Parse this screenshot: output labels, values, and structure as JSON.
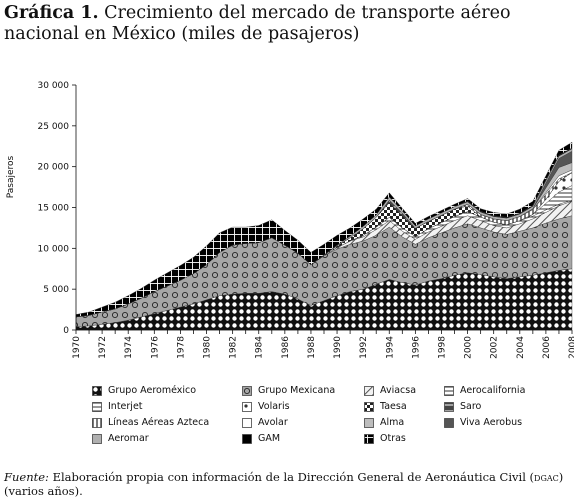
{
  "title": {
    "lead": "Gráfica 1.",
    "text": "Crecimiento del mercado de transporte aéreo nacional en México (miles de pasajeros)"
  },
  "chart_data": {
    "type": "area",
    "stacked": true,
    "ylabel": "Pasajeros",
    "ylim": [
      0,
      30000
    ],
    "yticks": [
      0,
      5000,
      10000,
      15000,
      20000,
      25000,
      30000
    ],
    "ytick_labels": [
      "0",
      "5 000",
      "10 000",
      "15 000",
      "20 000",
      "25 000",
      "30 000"
    ],
    "xtick_labels": [
      "1970",
      "1972",
      "1974",
      "1976",
      "1978",
      "1980",
      "1982",
      "1984",
      "1986",
      "1988",
      "1990",
      "1992",
      "1994",
      "1996",
      "1998",
      "2000",
      "2002",
      "2004",
      "2006",
      "2008"
    ],
    "x": [
      1970,
      1971,
      1972,
      1973,
      1974,
      1975,
      1976,
      1977,
      1978,
      1979,
      1980,
      1981,
      1982,
      1983,
      1984,
      1985,
      1986,
      1987,
      1988,
      1989,
      1990,
      1991,
      1992,
      1993,
      1994,
      1995,
      1996,
      1997,
      1998,
      1999,
      2000,
      2001,
      2002,
      2003,
      2004,
      2005,
      2006,
      2007,
      2008
    ],
    "series": [
      {
        "name": "Grupo Aeroméxico",
        "color": "#ffffff",
        "pattern": "dots-on-black",
        "values": [
          400,
          500,
          700,
          900,
          1200,
          1600,
          2000,
          2400,
          2800,
          3200,
          3700,
          4200,
          4400,
          4500,
          4500,
          4700,
          4400,
          3800,
          3000,
          3600,
          4200,
          4700,
          5000,
          5600,
          6200,
          5800,
          5500,
          6000,
          6300,
          6700,
          7000,
          6800,
          6500,
          6300,
          6500,
          6700,
          7000,
          7300,
          7500
        ]
      },
      {
        "name": "Grupo Mexicana",
        "color": "#a6a6a6",
        "pattern": "circles",
        "values": [
          1200,
          1300,
          1500,
          1700,
          2000,
          2300,
          2700,
          3000,
          3300,
          3700,
          4300,
          5300,
          6000,
          6100,
          6200,
          6600,
          6000,
          5600,
          5000,
          5500,
          5700,
          5800,
          5900,
          6000,
          6400,
          5600,
          5000,
          5300,
          5600,
          5800,
          6000,
          5700,
          5500,
          5400,
          5600,
          5800,
          6100,
          6300,
          6500
        ]
      },
      {
        "name": "Aviacsa",
        "color": "#d0d0d0",
        "pattern": "diagonal",
        "values": [
          0,
          0,
          0,
          0,
          0,
          0,
          0,
          0,
          0,
          0,
          0,
          0,
          0,
          0,
          0,
          0,
          0,
          0,
          0,
          0,
          200,
          400,
          500,
          700,
          800,
          700,
          600,
          700,
          800,
          900,
          1000,
          900,
          800,
          800,
          900,
          1100,
          1300,
          1600,
          1800
        ]
      },
      {
        "name": "Aerocalifornia",
        "color": "#eeeeee",
        "pattern": "hlines",
        "values": [
          0,
          0,
          0,
          0,
          0,
          0,
          0,
          0,
          0,
          0,
          0,
          0,
          0,
          0,
          0,
          0,
          0,
          0,
          0,
          0,
          0,
          0,
          200,
          300,
          400,
          400,
          350,
          400,
          450,
          500,
          500,
          450,
          400,
          400,
          400,
          350,
          300,
          200,
          100
        ]
      },
      {
        "name": "Interjet",
        "color": "#ffffff",
        "pattern": "hlines",
        "values": [
          0,
          0,
          0,
          0,
          0,
          0,
          0,
          0,
          0,
          0,
          0,
          0,
          0,
          0,
          0,
          0,
          0,
          0,
          0,
          0,
          0,
          0,
          0,
          0,
          0,
          0,
          0,
          0,
          0,
          0,
          0,
          0,
          0,
          0,
          0,
          200,
          800,
          1500,
          1800
        ]
      },
      {
        "name": "Volaris",
        "color": "#ffffff",
        "pattern": "stars",
        "values": [
          0,
          0,
          0,
          0,
          0,
          0,
          0,
          0,
          0,
          0,
          0,
          0,
          0,
          0,
          0,
          0,
          0,
          0,
          0,
          0,
          0,
          0,
          0,
          0,
          0,
          0,
          0,
          0,
          0,
          0,
          0,
          0,
          0,
          0,
          0,
          0,
          500,
          1300,
          1600
        ]
      },
      {
        "name": "Taesa",
        "color": "#333333",
        "pattern": "checker",
        "values": [
          0,
          0,
          0,
          0,
          0,
          0,
          0,
          0,
          0,
          0,
          0,
          0,
          0,
          0,
          0,
          0,
          0,
          0,
          0,
          100,
          200,
          400,
          800,
          1200,
          1800,
          1500,
          1000,
          900,
          900,
          900,
          700,
          0,
          0,
          0,
          0,
          0,
          0,
          0,
          0
        ]
      },
      {
        "name": "Saro",
        "color": "#555555",
        "pattern": "bars",
        "values": [
          0,
          0,
          0,
          0,
          0,
          0,
          0,
          0,
          0,
          0,
          0,
          0,
          0,
          0,
          0,
          0,
          0,
          0,
          0,
          0,
          0,
          0,
          0,
          0,
          300,
          300,
          0,
          0,
          0,
          0,
          0,
          0,
          0,
          0,
          0,
          0,
          0,
          0,
          0
        ]
      },
      {
        "name": "Líneas Aéreas Azteca",
        "color": "#dddddd",
        "pattern": "vlines",
        "values": [
          0,
          0,
          0,
          0,
          0,
          0,
          0,
          0,
          0,
          0,
          0,
          0,
          0,
          0,
          0,
          0,
          0,
          0,
          0,
          0,
          0,
          0,
          0,
          0,
          0,
          0,
          0,
          0,
          0,
          0,
          200,
          300,
          400,
          500,
          500,
          600,
          600,
          300,
          0
        ]
      },
      {
        "name": "Avolar",
        "color": "#ffffff",
        "pattern": "none",
        "values": [
          0,
          0,
          0,
          0,
          0,
          0,
          0,
          0,
          0,
          0,
          0,
          0,
          0,
          0,
          0,
          0,
          0,
          0,
          0,
          0,
          0,
          0,
          0,
          0,
          0,
          0,
          0,
          0,
          0,
          0,
          0,
          0,
          0,
          0,
          0,
          0,
          200,
          400,
          300
        ]
      },
      {
        "name": "Alma",
        "color": "#bdbdbd",
        "pattern": "none",
        "values": [
          0,
          0,
          0,
          0,
          0,
          0,
          0,
          0,
          0,
          0,
          0,
          0,
          0,
          0,
          0,
          0,
          0,
          0,
          0,
          0,
          0,
          0,
          0,
          0,
          0,
          0,
          0,
          0,
          0,
          0,
          0,
          0,
          0,
          0,
          0,
          100,
          600,
          1000,
          900
        ]
      },
      {
        "name": "Viva Aerobus",
        "color": "#555555",
        "pattern": "none",
        "values": [
          0,
          0,
          0,
          0,
          0,
          0,
          0,
          0,
          0,
          0,
          0,
          0,
          0,
          0,
          0,
          0,
          0,
          0,
          0,
          0,
          0,
          0,
          0,
          0,
          0,
          0,
          0,
          0,
          0,
          0,
          0,
          0,
          0,
          0,
          0,
          0,
          600,
          1100,
          1400
        ]
      },
      {
        "name": "Aeromar",
        "color": "#b0b0b0",
        "pattern": "none",
        "values": [
          0,
          0,
          0,
          0,
          0,
          0,
          0,
          0,
          0,
          0,
          0,
          0,
          0,
          0,
          0,
          0,
          0,
          0,
          0,
          0,
          100,
          200,
          300,
          300,
          400,
          300,
          300,
          300,
          300,
          300,
          300,
          300,
          300,
          300,
          300,
          300,
          300,
          300,
          300
        ]
      },
      {
        "name": "GAM",
        "color": "#000000",
        "pattern": "none",
        "values": [
          0,
          0,
          0,
          0,
          0,
          0,
          0,
          0,
          0,
          0,
          0,
          0,
          0,
          0,
          0,
          0,
          0,
          0,
          0,
          0,
          0,
          0,
          0,
          0,
          0,
          0,
          0,
          0,
          0,
          0,
          100,
          100,
          100,
          100,
          100,
          100,
          100,
          100,
          100
        ]
      },
      {
        "name": "Otras",
        "color": "#000000",
        "pattern": "grid",
        "values": [
          300,
          400,
          600,
          800,
          1000,
          1200,
          1400,
          1600,
          1800,
          2000,
          2300,
          2400,
          2200,
          2000,
          2100,
          2200,
          1800,
          1600,
          1500,
          1300,
          1200,
          1000,
          900,
          700,
          500,
          300,
          300,
          300,
          300,
          300,
          300,
          300,
          400,
          400,
          500,
          500,
          500,
          600,
          700
        ]
      }
    ],
    "legend_placement": "bottom",
    "grid": false
  },
  "source": {
    "label": "Fuente:",
    "text": "Elaboración propia con información de la Dirección General de Aeronáutica Civil (",
    "abbr": "dgac",
    "tail": ") (varios años)."
  }
}
